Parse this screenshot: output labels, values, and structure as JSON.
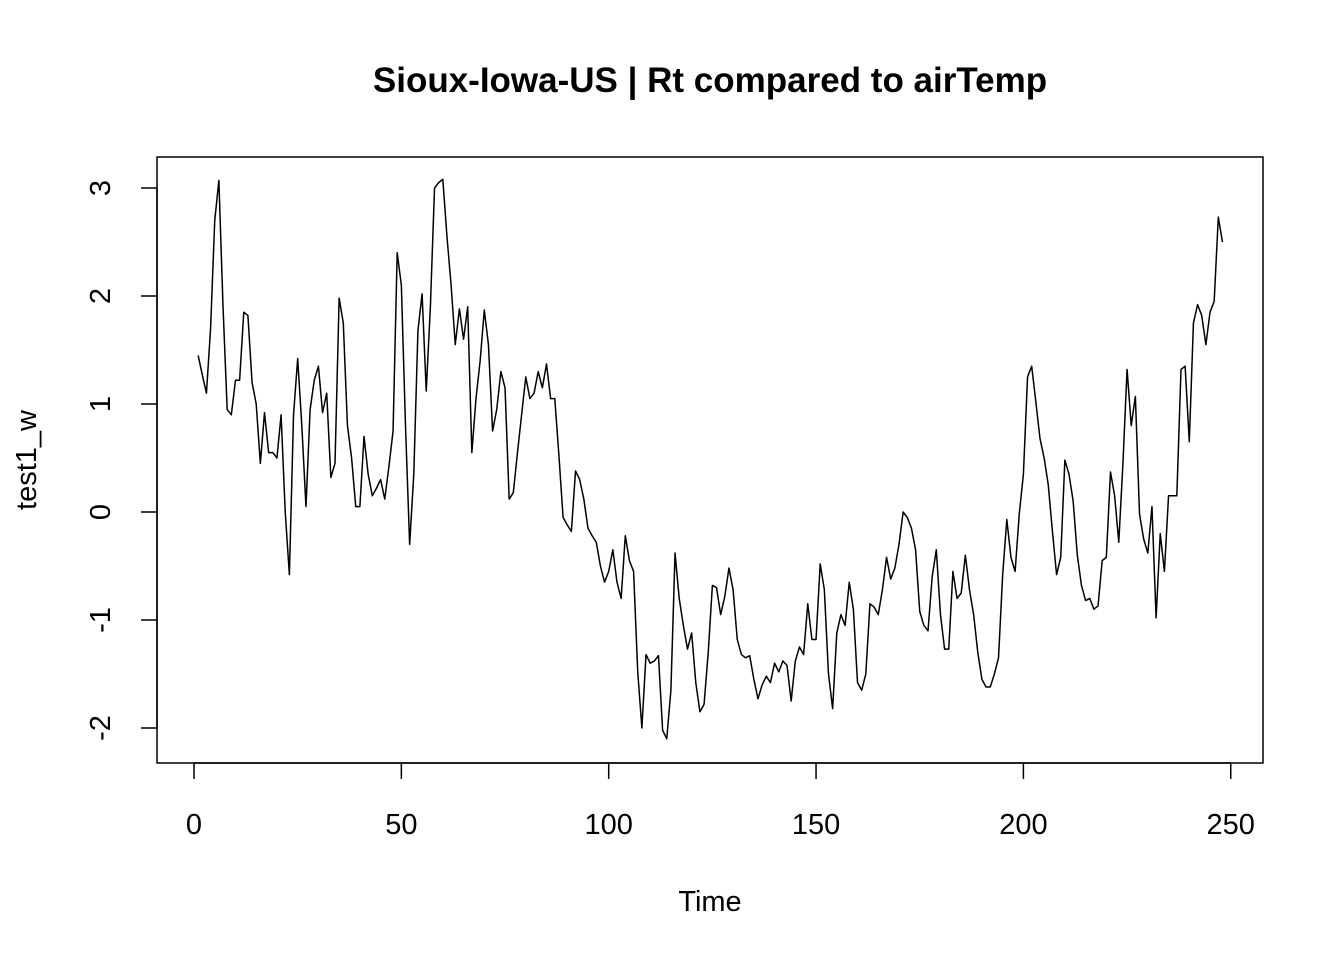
{
  "chart_data": {
    "type": "line",
    "title": "Sioux-Iowa-US | Rt compared to airTemp",
    "xlabel": "Time",
    "ylabel": "test1_w",
    "xlim": [
      1,
      248
    ],
    "ylim": [
      -2.12,
      3.08
    ],
    "x_ticks": [
      0,
      50,
      100,
      150,
      200,
      250
    ],
    "y_ticks": [
      -2,
      -1,
      0,
      1,
      2,
      3
    ],
    "grid": false,
    "legend": "none",
    "line_color": "#000000",
    "series": [
      {
        "x": [
          1,
          2,
          3,
          4,
          5,
          6,
          7,
          8,
          9,
          10,
          11,
          12,
          13,
          14,
          15,
          16,
          17,
          18,
          19,
          20,
          21,
          22,
          23,
          24,
          25,
          26,
          27,
          28,
          29,
          30,
          31,
          32,
          33,
          34,
          35,
          36,
          37,
          38,
          39,
          40,
          41,
          42,
          43,
          44,
          45,
          46,
          47,
          48,
          49,
          50,
          51,
          52,
          53,
          54,
          55,
          56,
          57,
          58,
          59,
          60,
          61,
          62,
          63,
          64,
          65,
          66,
          67,
          68,
          69,
          70,
          71,
          72,
          73,
          74,
          75,
          76,
          77,
          78,
          79,
          80,
          81,
          82,
          83,
          84,
          85,
          86,
          87,
          88,
          89,
          90,
          91,
          92,
          93,
          94,
          95,
          96,
          97,
          98,
          99,
          100,
          101,
          102,
          103,
          104,
          105,
          106,
          107,
          108,
          109,
          110,
          111,
          112,
          113,
          114,
          115,
          116,
          117,
          118,
          119,
          120,
          121,
          122,
          123,
          124,
          125,
          126,
          127,
          128,
          129,
          130,
          131,
          132,
          133,
          134,
          135,
          136,
          137,
          138,
          139,
          140,
          141,
          142,
          143,
          144,
          145,
          146,
          147,
          148,
          149,
          150,
          151,
          152,
          153,
          154,
          155,
          156,
          157,
          158,
          159,
          160,
          161,
          162,
          163,
          164,
          165,
          166,
          167,
          168,
          169,
          170,
          171,
          172,
          173,
          174,
          175,
          176,
          177,
          178,
          179,
          180,
          181,
          182,
          183,
          184,
          185,
          186,
          187,
          188,
          189,
          190,
          191,
          192,
          193,
          194,
          195,
          196,
          197,
          198,
          199,
          200,
          201,
          202,
          203,
          204,
          205,
          206,
          207,
          208,
          209,
          210,
          211,
          212,
          213,
          214,
          215,
          216,
          217,
          218,
          219,
          220,
          221,
          222,
          223,
          224,
          225,
          226,
          227,
          228,
          229,
          230,
          231,
          232,
          233,
          234,
          235,
          236,
          237,
          238,
          239,
          240,
          241,
          242,
          243,
          244,
          245,
          246,
          247,
          248
        ],
        "values": [
          1.45,
          1.27,
          1.1,
          1.7,
          2.7,
          3.07,
          1.9,
          0.95,
          0.9,
          1.22,
          1.22,
          1.85,
          1.82,
          1.2,
          1.0,
          0.45,
          0.92,
          0.55,
          0.55,
          0.5,
          0.9,
          0.0,
          -0.58,
          0.9,
          1.42,
          0.8,
          0.05,
          0.95,
          1.22,
          1.35,
          0.92,
          1.1,
          0.32,
          0.45,
          1.98,
          1.75,
          0.8,
          0.5,
          0.05,
          0.05,
          0.7,
          0.35,
          0.15,
          0.22,
          0.3,
          0.12,
          0.42,
          0.75,
          2.4,
          2.1,
          0.8,
          -0.3,
          0.35,
          1.68,
          2.02,
          1.12,
          1.9,
          3.0,
          3.05,
          3.08,
          2.55,
          2.1,
          1.55,
          1.88,
          1.6,
          1.9,
          0.55,
          1.05,
          1.4,
          1.87,
          1.55,
          0.75,
          0.95,
          1.3,
          1.15,
          0.12,
          0.18,
          0.55,
          0.9,
          1.25,
          1.05,
          1.1,
          1.3,
          1.15,
          1.37,
          1.05,
          1.05,
          0.52,
          -0.05,
          -0.12,
          -0.18,
          0.38,
          0.3,
          0.12,
          -0.15,
          -0.22,
          -0.28,
          -0.5,
          -0.65,
          -0.55,
          -0.35,
          -0.65,
          -0.8,
          -0.22,
          -0.45,
          -0.55,
          -1.48,
          -2.0,
          -1.32,
          -1.4,
          -1.38,
          -1.33,
          -2.02,
          -2.1,
          -1.65,
          -0.38,
          -0.8,
          -1.05,
          -1.27,
          -1.12,
          -1.58,
          -1.85,
          -1.78,
          -1.3,
          -0.68,
          -0.7,
          -0.95,
          -0.78,
          -0.52,
          -0.72,
          -1.18,
          -1.32,
          -1.35,
          -1.33,
          -1.55,
          -1.73,
          -1.6,
          -1.52,
          -1.58,
          -1.4,
          -1.48,
          -1.38,
          -1.42,
          -1.75,
          -1.38,
          -1.25,
          -1.32,
          -0.85,
          -1.18,
          -1.18,
          -0.48,
          -0.72,
          -1.5,
          -1.82,
          -1.12,
          -0.95,
          -1.05,
          -0.65,
          -0.9,
          -1.58,
          -1.65,
          -1.5,
          -0.85,
          -0.88,
          -0.95,
          -0.72,
          -0.42,
          -0.62,
          -0.52,
          -0.3,
          0.0,
          -0.05,
          -0.15,
          -0.35,
          -0.92,
          -1.05,
          -1.1,
          -0.6,
          -0.35,
          -0.95,
          -1.27,
          -1.27,
          -0.55,
          -0.8,
          -0.75,
          -0.4,
          -0.72,
          -0.95,
          -1.3,
          -1.55,
          -1.62,
          -1.62,
          -1.5,
          -1.35,
          -0.58,
          -0.07,
          -0.42,
          -0.55,
          -0.02,
          0.35,
          1.25,
          1.35,
          1.02,
          0.68,
          0.5,
          0.25,
          -0.18,
          -0.58,
          -0.42,
          0.48,
          0.35,
          0.1,
          -0.4,
          -0.68,
          -0.82,
          -0.8,
          -0.9,
          -0.87,
          -0.45,
          -0.42,
          0.37,
          0.15,
          -0.28,
          0.45,
          1.32,
          0.8,
          1.07,
          -0.02,
          -0.25,
          -0.38,
          0.05,
          -0.98,
          -0.2,
          -0.55,
          0.15,
          0.15,
          0.15,
          1.32,
          1.35,
          0.65,
          1.75,
          1.92,
          1.82,
          1.55,
          1.85,
          1.95,
          2.73,
          2.5
        ]
      }
    ]
  }
}
